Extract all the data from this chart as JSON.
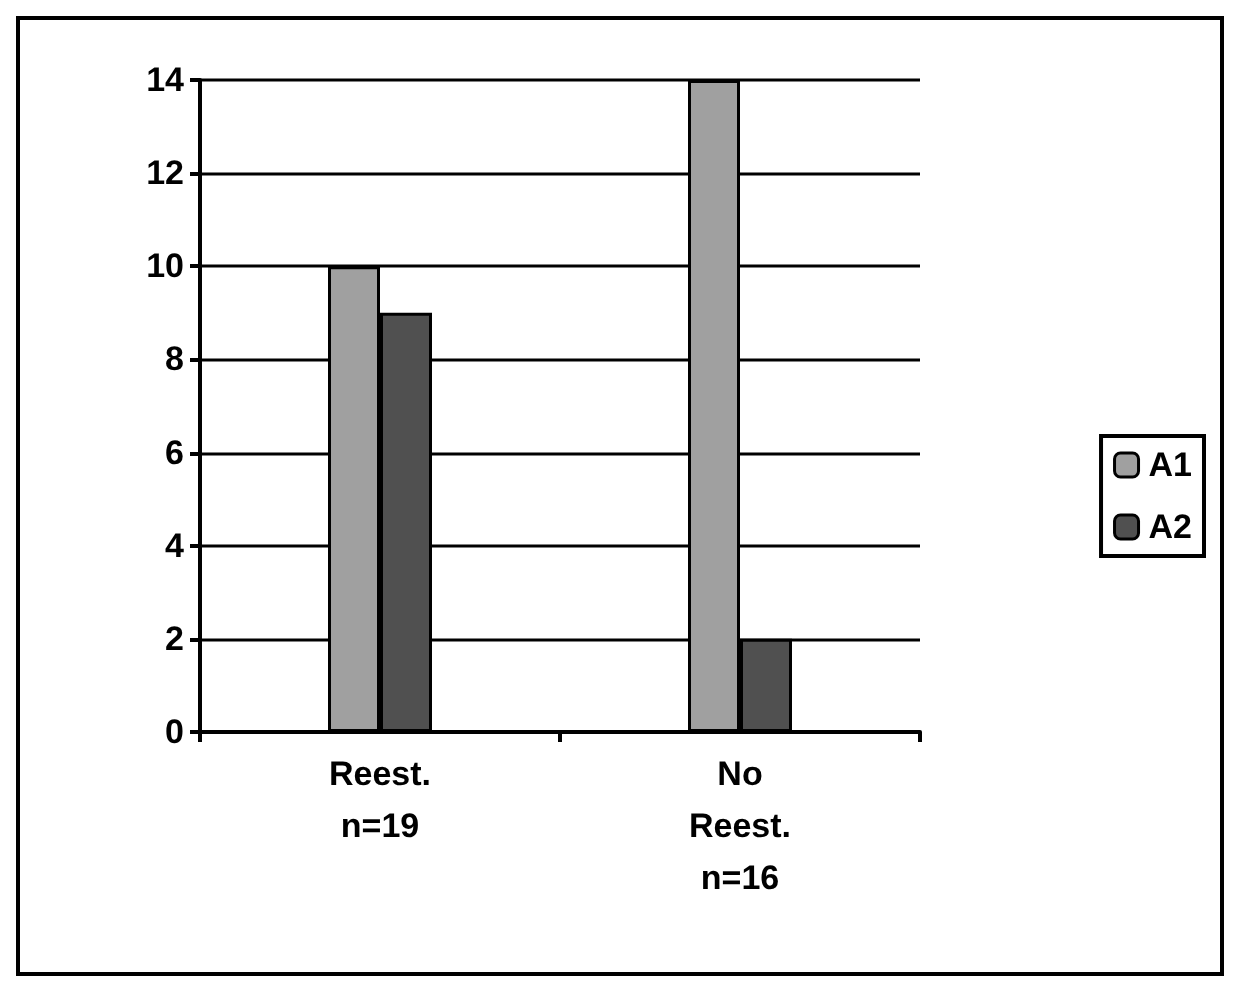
{
  "chart_data": {
    "type": "bar",
    "categories": [
      "Reest. n=19",
      "No Reest. n=16"
    ],
    "series": [
      {
        "name": "A1",
        "color": "#a0a0a0",
        "values": [
          10,
          14
        ]
      },
      {
        "name": "A2",
        "color": "#505050",
        "values": [
          9,
          2
        ]
      }
    ],
    "ylim": [
      0,
      14
    ],
    "yticks": [
      0,
      2,
      4,
      6,
      8,
      10,
      12,
      14
    ],
    "grid": "y",
    "legend": "right"
  }
}
